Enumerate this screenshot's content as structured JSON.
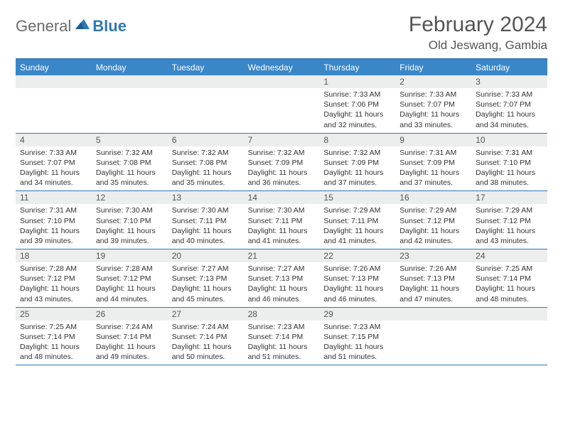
{
  "logo": {
    "general": "General",
    "blue": "Blue"
  },
  "title": "February 2024",
  "location": "Old Jeswang, Gambia",
  "colors": {
    "header_bg": "#3a87c8",
    "border": "#2f77b8",
    "daynum_bg": "#eceded",
    "text": "#333333",
    "title_text": "#555555"
  },
  "weekdays": [
    "Sunday",
    "Monday",
    "Tuesday",
    "Wednesday",
    "Thursday",
    "Friday",
    "Saturday"
  ],
  "weeks": [
    [
      {
        "num": "",
        "lines": []
      },
      {
        "num": "",
        "lines": []
      },
      {
        "num": "",
        "lines": []
      },
      {
        "num": "",
        "lines": []
      },
      {
        "num": "1",
        "lines": [
          "Sunrise: 7:33 AM",
          "Sunset: 7:06 PM",
          "Daylight: 11 hours and 32 minutes."
        ]
      },
      {
        "num": "2",
        "lines": [
          "Sunrise: 7:33 AM",
          "Sunset: 7:07 PM",
          "Daylight: 11 hours and 33 minutes."
        ]
      },
      {
        "num": "3",
        "lines": [
          "Sunrise: 7:33 AM",
          "Sunset: 7:07 PM",
          "Daylight: 11 hours and 34 minutes."
        ]
      }
    ],
    [
      {
        "num": "4",
        "lines": [
          "Sunrise: 7:33 AM",
          "Sunset: 7:07 PM",
          "Daylight: 11 hours and 34 minutes."
        ]
      },
      {
        "num": "5",
        "lines": [
          "Sunrise: 7:32 AM",
          "Sunset: 7:08 PM",
          "Daylight: 11 hours and 35 minutes."
        ]
      },
      {
        "num": "6",
        "lines": [
          "Sunrise: 7:32 AM",
          "Sunset: 7:08 PM",
          "Daylight: 11 hours and 35 minutes."
        ]
      },
      {
        "num": "7",
        "lines": [
          "Sunrise: 7:32 AM",
          "Sunset: 7:09 PM",
          "Daylight: 11 hours and 36 minutes."
        ]
      },
      {
        "num": "8",
        "lines": [
          "Sunrise: 7:32 AM",
          "Sunset: 7:09 PM",
          "Daylight: 11 hours and 37 minutes."
        ]
      },
      {
        "num": "9",
        "lines": [
          "Sunrise: 7:31 AM",
          "Sunset: 7:09 PM",
          "Daylight: 11 hours and 37 minutes."
        ]
      },
      {
        "num": "10",
        "lines": [
          "Sunrise: 7:31 AM",
          "Sunset: 7:10 PM",
          "Daylight: 11 hours and 38 minutes."
        ]
      }
    ],
    [
      {
        "num": "11",
        "lines": [
          "Sunrise: 7:31 AM",
          "Sunset: 7:10 PM",
          "Daylight: 11 hours and 39 minutes."
        ]
      },
      {
        "num": "12",
        "lines": [
          "Sunrise: 7:30 AM",
          "Sunset: 7:10 PM",
          "Daylight: 11 hours and 39 minutes."
        ]
      },
      {
        "num": "13",
        "lines": [
          "Sunrise: 7:30 AM",
          "Sunset: 7:11 PM",
          "Daylight: 11 hours and 40 minutes."
        ]
      },
      {
        "num": "14",
        "lines": [
          "Sunrise: 7:30 AM",
          "Sunset: 7:11 PM",
          "Daylight: 11 hours and 41 minutes."
        ]
      },
      {
        "num": "15",
        "lines": [
          "Sunrise: 7:29 AM",
          "Sunset: 7:11 PM",
          "Daylight: 11 hours and 41 minutes."
        ]
      },
      {
        "num": "16",
        "lines": [
          "Sunrise: 7:29 AM",
          "Sunset: 7:12 PM",
          "Daylight: 11 hours and 42 minutes."
        ]
      },
      {
        "num": "17",
        "lines": [
          "Sunrise: 7:29 AM",
          "Sunset: 7:12 PM",
          "Daylight: 11 hours and 43 minutes."
        ]
      }
    ],
    [
      {
        "num": "18",
        "lines": [
          "Sunrise: 7:28 AM",
          "Sunset: 7:12 PM",
          "Daylight: 11 hours and 43 minutes."
        ]
      },
      {
        "num": "19",
        "lines": [
          "Sunrise: 7:28 AM",
          "Sunset: 7:12 PM",
          "Daylight: 11 hours and 44 minutes."
        ]
      },
      {
        "num": "20",
        "lines": [
          "Sunrise: 7:27 AM",
          "Sunset: 7:13 PM",
          "Daylight: 11 hours and 45 minutes."
        ]
      },
      {
        "num": "21",
        "lines": [
          "Sunrise: 7:27 AM",
          "Sunset: 7:13 PM",
          "Daylight: 11 hours and 46 minutes."
        ]
      },
      {
        "num": "22",
        "lines": [
          "Sunrise: 7:26 AM",
          "Sunset: 7:13 PM",
          "Daylight: 11 hours and 46 minutes."
        ]
      },
      {
        "num": "23",
        "lines": [
          "Sunrise: 7:26 AM",
          "Sunset: 7:13 PM",
          "Daylight: 11 hours and 47 minutes."
        ]
      },
      {
        "num": "24",
        "lines": [
          "Sunrise: 7:25 AM",
          "Sunset: 7:14 PM",
          "Daylight: 11 hours and 48 minutes."
        ]
      }
    ],
    [
      {
        "num": "25",
        "lines": [
          "Sunrise: 7:25 AM",
          "Sunset: 7:14 PM",
          "Daylight: 11 hours and 48 minutes."
        ]
      },
      {
        "num": "26",
        "lines": [
          "Sunrise: 7:24 AM",
          "Sunset: 7:14 PM",
          "Daylight: 11 hours and 49 minutes."
        ]
      },
      {
        "num": "27",
        "lines": [
          "Sunrise: 7:24 AM",
          "Sunset: 7:14 PM",
          "Daylight: 11 hours and 50 minutes."
        ]
      },
      {
        "num": "28",
        "lines": [
          "Sunrise: 7:23 AM",
          "Sunset: 7:14 PM",
          "Daylight: 11 hours and 51 minutes."
        ]
      },
      {
        "num": "29",
        "lines": [
          "Sunrise: 7:23 AM",
          "Sunset: 7:15 PM",
          "Daylight: 11 hours and 51 minutes."
        ]
      },
      {
        "num": "",
        "lines": []
      },
      {
        "num": "",
        "lines": []
      }
    ]
  ]
}
